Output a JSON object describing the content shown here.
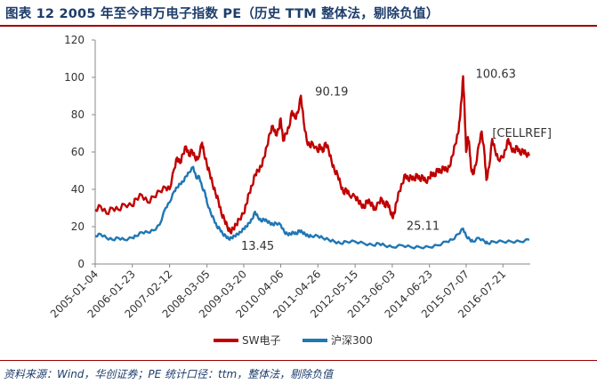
{
  "header": {
    "title": "图表 12   2005 年至今申万电子指数 PE（历史 TTM 整体法，剔除负值）"
  },
  "footer": {
    "source": "资料来源：Wind，华创证券；PE 统计口径：ttm，整体法，剔除负值"
  },
  "colors": {
    "sw_electronics": "#c00000",
    "csi300": "#1f77b4",
    "title": "#1d3d6b",
    "rule": "#9b0000"
  },
  "chart_data": {
    "type": "line",
    "title": "",
    "xlabel": "",
    "ylabel": "",
    "ylim": [
      0,
      120
    ],
    "yticks": [
      0,
      20,
      40,
      60,
      80,
      100,
      120
    ],
    "xlim": [
      "2005-01-04",
      "2017-04-30"
    ],
    "x_tick_labels": [
      "2005-01-04",
      "2006-01-23",
      "2007-02-12",
      "2008-03-05",
      "2009-03-20",
      "2010-04-06",
      "2011-04-26",
      "2012-05-15",
      "2013-06-03",
      "2014-06-23",
      "2015-07-07",
      "2016-07-21"
    ],
    "grid": false,
    "legend": "bottom",
    "series": [
      {
        "name": "SW电子",
        "color": "#c00000",
        "points": [
          [
            "2005-01-04",
            29
          ],
          [
            "2005-03-01",
            31
          ],
          [
            "2005-05-01",
            27
          ],
          [
            "2005-07-01",
            30
          ],
          [
            "2005-09-01",
            29
          ],
          [
            "2005-11-01",
            32
          ],
          [
            "2006-01-23",
            31
          ],
          [
            "2006-03-01",
            35
          ],
          [
            "2006-05-01",
            37
          ],
          [
            "2006-07-01",
            33
          ],
          [
            "2006-09-01",
            36
          ],
          [
            "2006-11-01",
            39
          ],
          [
            "2007-01-01",
            41
          ],
          [
            "2007-02-12",
            40
          ],
          [
            "2007-04-01",
            51
          ],
          [
            "2007-05-01",
            57
          ],
          [
            "2007-06-01",
            54
          ],
          [
            "2007-07-01",
            59
          ],
          [
            "2007-08-01",
            63
          ],
          [
            "2007-09-01",
            58
          ],
          [
            "2007-10-01",
            61
          ],
          [
            "2007-11-01",
            57
          ],
          [
            "2007-12-01",
            56
          ],
          [
            "2008-01-15",
            65
          ],
          [
            "2008-02-01",
            60
          ],
          [
            "2008-03-05",
            53
          ],
          [
            "2008-04-01",
            49
          ],
          [
            "2008-05-01",
            43
          ],
          [
            "2008-06-01",
            38
          ],
          [
            "2008-07-01",
            34
          ],
          [
            "2008-08-01",
            27
          ],
          [
            "2008-09-01",
            24
          ],
          [
            "2008-10-01",
            20
          ],
          [
            "2008-11-01",
            17
          ],
          [
            "2008-12-01",
            19
          ],
          [
            "2009-01-01",
            21
          ],
          [
            "2009-02-01",
            24
          ],
          [
            "2009-03-20",
            27
          ],
          [
            "2009-04-15",
            32
          ],
          [
            "2009-05-15",
            38
          ],
          [
            "2009-06-15",
            42
          ],
          [
            "2009-07-15",
            48
          ],
          [
            "2009-08-15",
            50
          ],
          [
            "2009-09-15",
            52
          ],
          [
            "2009-10-15",
            57
          ],
          [
            "2009-11-15",
            63
          ],
          [
            "2009-12-15",
            70
          ],
          [
            "2010-01-15",
            74
          ],
          [
            "2010-02-15",
            69
          ],
          [
            "2010-03-15",
            72
          ],
          [
            "2010-04-06",
            78
          ],
          [
            "2010-05-01",
            66
          ],
          [
            "2010-06-01",
            70
          ],
          [
            "2010-07-01",
            73
          ],
          [
            "2010-08-01",
            82
          ],
          [
            "2010-09-01",
            78
          ],
          [
            "2010-10-01",
            81
          ],
          [
            "2010-11-01",
            90.19
          ],
          [
            "2010-12-01",
            76
          ],
          [
            "2011-01-01",
            66
          ],
          [
            "2011-02-01",
            63
          ],
          [
            "2011-03-01",
            65
          ],
          [
            "2011-04-26",
            60
          ],
          [
            "2011-05-15",
            64
          ],
          [
            "2011-06-15",
            60
          ],
          [
            "2011-07-15",
            65
          ],
          [
            "2011-08-15",
            61
          ],
          [
            "2011-09-15",
            55
          ],
          [
            "2011-10-15",
            50
          ],
          [
            "2011-11-15",
            48
          ],
          [
            "2011-12-15",
            43
          ],
          [
            "2012-01-15",
            38
          ],
          [
            "2012-02-15",
            40
          ],
          [
            "2012-03-15",
            37
          ],
          [
            "2012-05-15",
            36
          ],
          [
            "2012-06-15",
            34
          ],
          [
            "2012-07-15",
            32
          ],
          [
            "2012-08-15",
            30
          ],
          [
            "2012-09-15",
            34
          ],
          [
            "2012-10-15",
            33
          ],
          [
            "2012-11-15",
            31
          ],
          [
            "2012-12-01",
            29
          ],
          [
            "2013-01-15",
            33
          ],
          [
            "2013-02-15",
            35
          ],
          [
            "2013-03-15",
            31
          ],
          [
            "2013-04-15",
            33
          ],
          [
            "2013-05-10",
            29
          ],
          [
            "2013-06-03",
            25.11
          ],
          [
            "2013-06-25",
            27
          ],
          [
            "2013-07-15",
            33
          ],
          [
            "2013-08-15",
            39
          ],
          [
            "2013-09-15",
            43
          ],
          [
            "2013-10-15",
            48
          ],
          [
            "2013-11-15",
            45
          ],
          [
            "2013-12-15",
            47
          ],
          [
            "2014-01-15",
            45
          ],
          [
            "2014-02-15",
            48
          ],
          [
            "2014-03-15",
            45
          ],
          [
            "2014-04-15",
            47
          ],
          [
            "2014-05-15",
            44
          ],
          [
            "2014-06-23",
            46
          ],
          [
            "2014-07-15",
            49
          ],
          [
            "2014-08-15",
            47
          ],
          [
            "2014-09-15",
            51
          ],
          [
            "2014-10-15",
            49
          ],
          [
            "2014-11-15",
            52
          ],
          [
            "2014-12-15",
            50
          ],
          [
            "2015-01-15",
            52
          ],
          [
            "2015-02-15",
            58
          ],
          [
            "2015-03-15",
            64
          ],
          [
            "2015-04-15",
            70
          ],
          [
            "2015-05-01",
            77
          ],
          [
            "2015-05-20",
            88
          ],
          [
            "2015-06-05",
            100.63
          ],
          [
            "2015-06-20",
            84
          ],
          [
            "2015-07-07",
            60
          ],
          [
            "2015-07-25",
            68
          ],
          [
            "2015-08-10",
            63
          ],
          [
            "2015-08-25",
            52
          ],
          [
            "2015-09-15",
            48
          ],
          [
            "2015-10-15",
            53
          ],
          [
            "2015-11-15",
            64
          ],
          [
            "2015-12-15",
            71
          ],
          [
            "2016-01-15",
            58
          ],
          [
            "2016-02-01",
            45
          ],
          [
            "2016-03-01",
            52
          ],
          [
            "2016-04-01",
            67
          ],
          [
            "2016-05-01",
            61
          ],
          [
            "2016-06-01",
            56
          ],
          [
            "2016-07-21",
            57
          ],
          [
            "2016-08-15",
            61
          ],
          [
            "2016-09-15",
            67
          ],
          [
            "2016-10-15",
            62
          ],
          [
            "2016-11-15",
            60
          ],
          [
            "2016-12-15",
            63
          ],
          [
            "2017-01-15",
            59
          ],
          [
            "2017-02-15",
            61
          ],
          [
            "2017-03-15",
            59
          ],
          [
            "2017-04-20",
            58
          ]
        ]
      },
      {
        "name": "沪深300",
        "color": "#1f77b4",
        "points": [
          [
            "2005-01-04",
            15
          ],
          [
            "2005-03-01",
            16
          ],
          [
            "2005-05-01",
            14
          ],
          [
            "2005-07-01",
            13
          ],
          [
            "2005-09-01",
            14
          ],
          [
            "2005-11-01",
            13
          ],
          [
            "2006-01-23",
            14
          ],
          [
            "2006-03-01",
            15
          ],
          [
            "2006-05-01",
            17
          ],
          [
            "2006-07-01",
            17
          ],
          [
            "2006-09-01",
            18
          ],
          [
            "2006-11-01",
            21
          ],
          [
            "2007-01-01",
            30
          ],
          [
            "2007-02-12",
            33
          ],
          [
            "2007-04-01",
            39
          ],
          [
            "2007-05-01",
            41
          ],
          [
            "2007-06-01",
            43
          ],
          [
            "2007-07-01",
            44
          ],
          [
            "2007-08-01",
            47
          ],
          [
            "2007-09-01",
            49
          ],
          [
            "2007-10-15",
            52
          ],
          [
            "2007-11-15",
            46
          ],
          [
            "2007-12-15",
            47
          ],
          [
            "2008-01-15",
            41
          ],
          [
            "2008-02-15",
            38
          ],
          [
            "2008-03-05",
            33
          ],
          [
            "2008-04-15",
            27
          ],
          [
            "2008-05-15",
            24
          ],
          [
            "2008-06-15",
            20
          ],
          [
            "2008-07-15",
            19
          ],
          [
            "2008-08-15",
            16
          ],
          [
            "2008-09-15",
            15
          ],
          [
            "2008-10-15",
            13.45
          ],
          [
            "2008-11-15",
            14
          ],
          [
            "2008-12-15",
            15
          ],
          [
            "2009-01-15",
            16
          ],
          [
            "2009-02-15",
            17
          ],
          [
            "2009-03-20",
            19
          ],
          [
            "2009-04-15",
            20
          ],
          [
            "2009-05-15",
            22
          ],
          [
            "2009-06-15",
            24
          ],
          [
            "2009-07-15",
            28
          ],
          [
            "2009-08-15",
            25
          ],
          [
            "2009-09-15",
            23
          ],
          [
            "2009-10-15",
            24
          ],
          [
            "2009-11-15",
            23
          ],
          [
            "2009-12-15",
            22
          ],
          [
            "2010-01-15",
            21
          ],
          [
            "2010-02-15",
            22
          ],
          [
            "2010-04-06",
            21
          ],
          [
            "2010-05-15",
            17
          ],
          [
            "2010-06-15",
            16
          ],
          [
            "2010-07-15",
            16
          ],
          [
            "2010-08-15",
            17
          ],
          [
            "2010-09-15",
            16
          ],
          [
            "2010-10-15",
            18
          ],
          [
            "2010-11-15",
            17
          ],
          [
            "2010-12-15",
            16
          ],
          [
            "2011-01-15",
            15
          ],
          [
            "2011-02-15",
            15
          ],
          [
            "2011-04-26",
            15
          ],
          [
            "2011-06-15",
            14
          ],
          [
            "2011-08-15",
            13
          ],
          [
            "2011-10-15",
            12
          ],
          [
            "2011-12-15",
            11
          ],
          [
            "2012-02-15",
            12
          ],
          [
            "2012-05-15",
            12
          ],
          [
            "2012-08-15",
            11
          ],
          [
            "2012-11-15",
            10
          ],
          [
            "2013-01-15",
            11
          ],
          [
            "2013-03-15",
            10
          ],
          [
            "2013-06-03",
            9
          ],
          [
            "2013-09-15",
            10
          ],
          [
            "2013-12-15",
            9
          ],
          [
            "2014-03-15",
            9
          ],
          [
            "2014-06-23",
            9
          ],
          [
            "2014-09-15",
            10
          ],
          [
            "2014-12-15",
            12
          ],
          [
            "2015-02-15",
            13
          ],
          [
            "2015-04-15",
            16
          ],
          [
            "2015-06-05",
            19
          ],
          [
            "2015-07-07",
            15
          ],
          [
            "2015-08-15",
            13
          ],
          [
            "2015-09-15",
            12
          ],
          [
            "2015-11-15",
            14
          ],
          [
            "2016-01-15",
            12
          ],
          [
            "2016-02-15",
            11
          ],
          [
            "2016-04-15",
            12
          ],
          [
            "2016-07-21",
            12
          ],
          [
            "2016-10-15",
            12
          ],
          [
            "2017-01-15",
            12
          ],
          [
            "2017-04-20",
            13
          ]
        ]
      }
    ],
    "annotations": [
      {
        "label": "90.19",
        "x": "2010-11-01",
        "y": 90.19,
        "series": "SW电子"
      },
      {
        "label": "100.63",
        "x": "2015-06-05",
        "y": 100.63,
        "series": "SW电子"
      },
      {
        "label": "[CELLREF]",
        "x": "2016-03-15",
        "y": 68,
        "series": "SW电子"
      },
      {
        "label": "25.11",
        "x": "2013-06-03",
        "y": 25.11,
        "series": "SW电子"
      },
      {
        "label": "13.45",
        "x": "2008-10-15",
        "y": 13.45,
        "series": "沪深300"
      }
    ]
  }
}
